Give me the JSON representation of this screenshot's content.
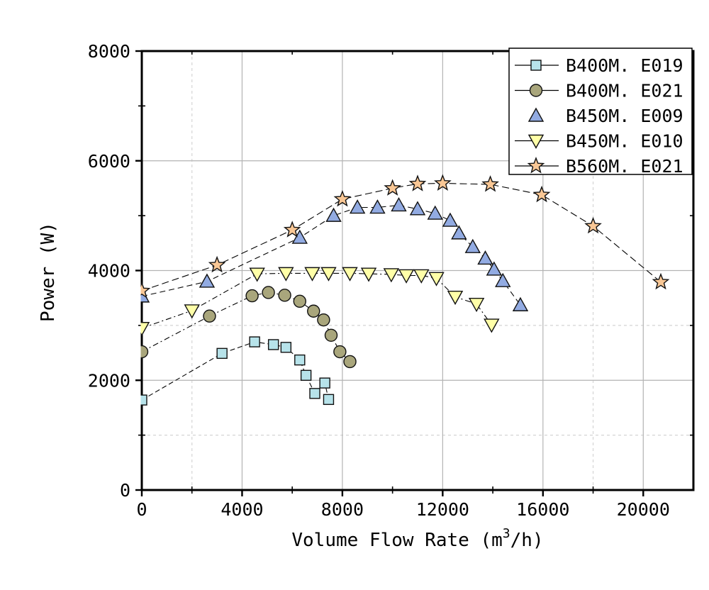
{
  "chart_data": {
    "type": "line",
    "title": "",
    "xlabel": "Volume Flow Rate (m³/h)",
    "xlabel_parts": {
      "prefix": "Volume Flow Rate (m",
      "sup": "3",
      "suffix": "/h)"
    },
    "ylabel": "Power (W)",
    "xlim": [
      0,
      22000
    ],
    "ylim": [
      0,
      8000
    ],
    "x_major_ticks": [
      0,
      4000,
      8000,
      12000,
      16000,
      20000
    ],
    "x_minor_ticks": [
      2000,
      6000,
      10000,
      14000,
      18000
    ],
    "y_major_ticks": [
      0,
      2000,
      4000,
      6000,
      8000
    ],
    "y_minor_ticks": [
      1000,
      3000,
      5000,
      7000
    ],
    "grid": {
      "x_major_gridlines": [
        4000,
        8000,
        12000,
        16000,
        20000
      ],
      "y_major_gridlines": [
        2000,
        4000,
        6000
      ],
      "x_dashed_gridlines": [
        2000,
        18000
      ],
      "y_dashed_gridlines": [
        1000,
        3000
      ],
      "major_color": "#b3b3b3",
      "dashed_color": "#d4d4d4"
    },
    "axis_color": "#000000",
    "legend_position": "top-right",
    "series": [
      {
        "name": "B400M. E019",
        "marker": "square",
        "fill": "#b7e3ea",
        "dash": "7 4",
        "legend_line": true,
        "points": [
          [
            0,
            1640
          ],
          [
            3200,
            2490
          ],
          [
            4500,
            2700
          ],
          [
            5250,
            2650
          ],
          [
            5750,
            2600
          ],
          [
            6300,
            2370
          ],
          [
            6550,
            2090
          ],
          [
            6900,
            1760
          ],
          [
            7300,
            1950
          ],
          [
            7450,
            1650
          ]
        ]
      },
      {
        "name": "B400M. E021",
        "marker": "circle",
        "fill": "#a9a67c",
        "dash": "8 4 2 4",
        "legend_line": true,
        "points": [
          [
            0,
            2520
          ],
          [
            2700,
            3170
          ],
          [
            4400,
            3540
          ],
          [
            5050,
            3600
          ],
          [
            5700,
            3550
          ],
          [
            6300,
            3440
          ],
          [
            6850,
            3260
          ],
          [
            7250,
            3100
          ],
          [
            7550,
            2820
          ],
          [
            7900,
            2520
          ],
          [
            8300,
            2340
          ]
        ]
      },
      {
        "name": "B450M. E009",
        "marker": "triangle-up",
        "fill": "#92abe2",
        "dash": "8 5",
        "legend_line": false,
        "points": [
          [
            0,
            3530
          ],
          [
            2600,
            3800
          ],
          [
            6300,
            4600
          ],
          [
            7650,
            5000
          ],
          [
            8600,
            5150
          ],
          [
            9400,
            5150
          ],
          [
            10250,
            5190
          ],
          [
            11000,
            5120
          ],
          [
            11700,
            5040
          ],
          [
            12300,
            4910
          ],
          [
            12650,
            4680
          ],
          [
            13200,
            4430
          ],
          [
            13700,
            4220
          ],
          [
            14050,
            4020
          ],
          [
            14400,
            3810
          ],
          [
            15100,
            3370
          ]
        ]
      },
      {
        "name": "B450M. E010",
        "marker": "triangle-down",
        "fill": "#ffffa8",
        "dash": "8 4 2 4",
        "legend_line": true,
        "points": [
          [
            0,
            2950
          ],
          [
            2000,
            3270
          ],
          [
            4600,
            3940
          ],
          [
            5750,
            3950
          ],
          [
            6800,
            3950
          ],
          [
            7450,
            3950
          ],
          [
            8300,
            3950
          ],
          [
            9050,
            3940
          ],
          [
            9950,
            3930
          ],
          [
            10550,
            3910
          ],
          [
            11150,
            3910
          ],
          [
            11750,
            3860
          ],
          [
            12500,
            3520
          ],
          [
            13350,
            3390
          ],
          [
            13950,
            3010
          ]
        ]
      },
      {
        "name": "B560M. E021",
        "marker": "star",
        "fill": "#f9c795",
        "dash": "10 5",
        "legend_line": true,
        "points": [
          [
            0,
            3630
          ],
          [
            3000,
            4100
          ],
          [
            6000,
            4740
          ],
          [
            8000,
            5300
          ],
          [
            10000,
            5500
          ],
          [
            11000,
            5580
          ],
          [
            12000,
            5590
          ],
          [
            13900,
            5570
          ],
          [
            15950,
            5380
          ],
          [
            18000,
            4810
          ],
          [
            20700,
            3790
          ]
        ]
      }
    ]
  }
}
